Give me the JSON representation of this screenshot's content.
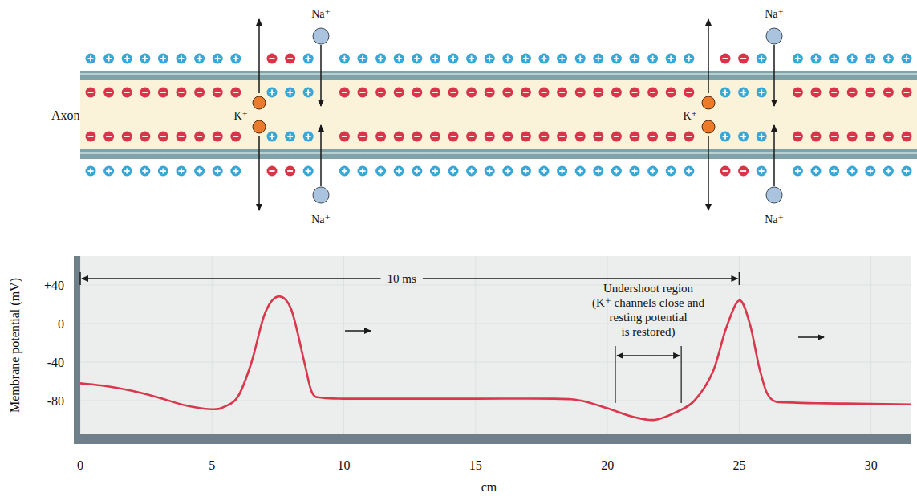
{
  "diagram": {
    "axon_label": "Axon",
    "channels": [
      {
        "na_top": "Na⁺",
        "na_bottom": "Na⁺",
        "k": "K⁺"
      },
      {
        "na_top": "Na⁺",
        "na_bottom": "Na⁺",
        "k": "K⁺"
      }
    ]
  },
  "chart_data": {
    "type": "line",
    "x_label": "cm",
    "y_label": "Membrane potential (mV)",
    "x": [
      0,
      1,
      2,
      3,
      4,
      5,
      5.5,
      6,
      6.5,
      7,
      7.5,
      8,
      8.5,
      8.8,
      9.2,
      10,
      12,
      15,
      18,
      19,
      20,
      21,
      21.8,
      22.6,
      23.3,
      24,
      24.5,
      25,
      25.4,
      25.8,
      26.2,
      27,
      29,
      31.5
    ],
    "values": [
      -62,
      -65,
      -70,
      -77,
      -85,
      -89,
      -86,
      -75,
      -40,
      10,
      28,
      15,
      -40,
      -72,
      -77,
      -78,
      -78,
      -78,
      -78,
      -80,
      -88,
      -97,
      -100,
      -92,
      -80,
      -50,
      -5,
      24,
      0,
      -50,
      -78,
      -82,
      -83,
      -84
    ],
    "color": "#d9374b",
    "line_style": "solid",
    "xlim": [
      0,
      31.5
    ],
    "ylim": [
      -115,
      70
    ],
    "xticks": [
      0,
      5,
      10,
      15,
      20,
      25,
      30
    ],
    "yticks": [
      {
        "value": 40,
        "label": "+40"
      },
      0,
      -40,
      -80
    ],
    "grid": true,
    "annotations": [
      {
        "text": "10 ms",
        "x": [
          0,
          25
        ]
      },
      {
        "text": [
          "Undershoot region",
          "(K⁺ channels close and",
          "resting potential",
          "is restored)"
        ],
        "x": [
          20.3,
          22.8
        ]
      }
    ]
  }
}
